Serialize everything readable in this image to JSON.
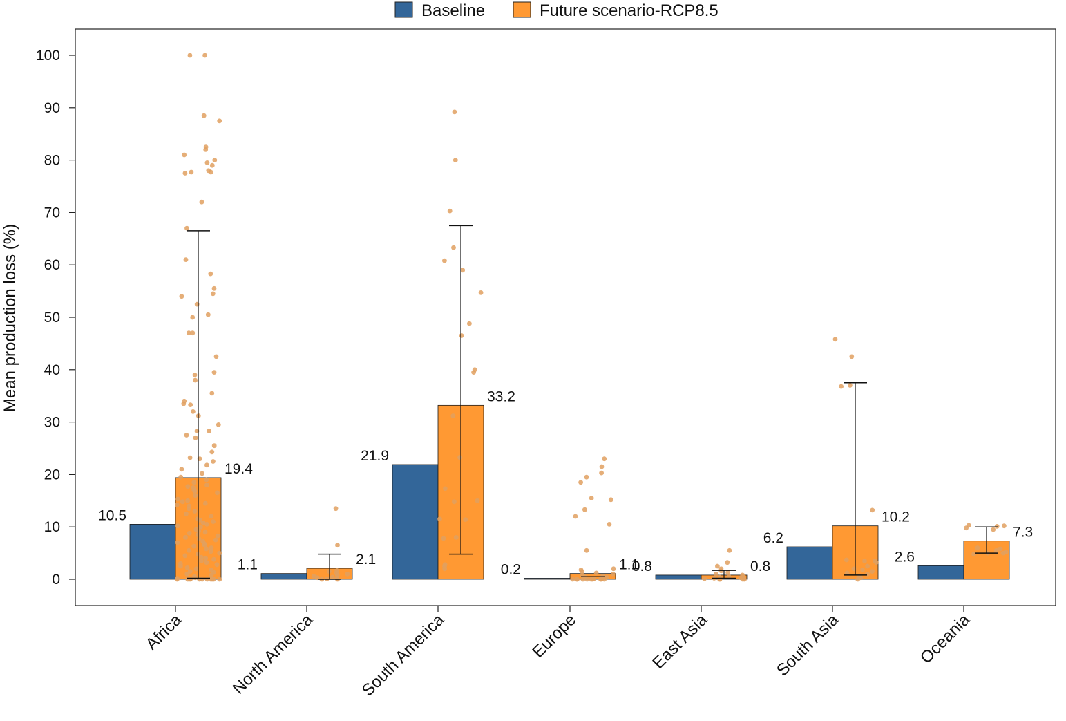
{
  "chart_data": {
    "type": "bar",
    "title": "",
    "xlabel": "",
    "ylabel": "Mean production loss (%)",
    "ylim": [
      -5,
      105
    ],
    "yticks": [
      0,
      10,
      20,
      30,
      40,
      50,
      60,
      70,
      80,
      90,
      100
    ],
    "grid": false,
    "legend_position": "top-center",
    "categories": [
      "Africa",
      "North America",
      "South America",
      "Europe",
      "East Asia",
      "South Asia",
      "Oceania"
    ],
    "series": [
      {
        "name": "Baseline",
        "color": "#336699",
        "values": [
          10.5,
          1.1,
          21.9,
          0.2,
          0.8,
          6.2,
          2.6
        ],
        "labels": [
          "10.5",
          "1.1",
          "21.9",
          "0.2",
          "0.8",
          "6.2",
          "2.6"
        ]
      },
      {
        "name": "Future scenario-RCP8.5",
        "color": "#FF9933",
        "values": [
          19.4,
          2.1,
          33.2,
          1.1,
          0.8,
          10.2,
          7.3
        ],
        "labels": [
          "19.4",
          "2.1",
          "33.2",
          "1.1",
          "0.8",
          "10.2",
          "7.3"
        ],
        "error_bars": [
          [
            0.2,
            66.5
          ],
          [
            0,
            4.8
          ],
          [
            4.8,
            67.5
          ],
          [
            0.5,
            0.5
          ],
          [
            0.2,
            1.7
          ],
          [
            0.8,
            37.5
          ],
          [
            5.0,
            10.0
          ]
        ],
        "points": [
          [
            100,
            100,
            88.5,
            87.5,
            82.5,
            82,
            81,
            80,
            79.5,
            79,
            78,
            77.7,
            77.7,
            77.5,
            72,
            67,
            61,
            58.3,
            55.5,
            54.5,
            54,
            52.5,
            50.5,
            50,
            47,
            47,
            42.5,
            39.5,
            39,
            38,
            35.5,
            34,
            33.5,
            33.3,
            32,
            31.2,
            29.5,
            28.3,
            28.3,
            27.5,
            27,
            25.5,
            24.3,
            23.2,
            23,
            22.5,
            21.8,
            21,
            20.2,
            19.5,
            19,
            18.5,
            18,
            17.7,
            17.5,
            17,
            16.8,
            16.5,
            16,
            15.3,
            15,
            14.8,
            14.5,
            14.2,
            14,
            13.5,
            13,
            12.5,
            12,
            11.5,
            11.3,
            11,
            10.8,
            10.5,
            10.2,
            10,
            9.5,
            9.2,
            9,
            8.8,
            8.5,
            8.3,
            8,
            7.7,
            7.5,
            7.2,
            7,
            6.8,
            6.5,
            6.3,
            6,
            5.8,
            5.5,
            5.3,
            5,
            4.8,
            4.5,
            4.2,
            4,
            3.8,
            3.5,
            3.2,
            3,
            2.8,
            2.5,
            2.2,
            2,
            1.8,
            1.5,
            1.3,
            1,
            0.8,
            0.5,
            0.3,
            0.2,
            0.1,
            0,
            0,
            0,
            0,
            0,
            0,
            0,
            0,
            0,
            0
          ],
          [
            13.5,
            6.5,
            1.7,
            1.5,
            1.2,
            1,
            0.8,
            0.6,
            0.4,
            0.3,
            0.2,
            0.1,
            0,
            0
          ],
          [
            89.2,
            80,
            70.3,
            63.3,
            60.8,
            59,
            54.7,
            48.8,
            46.5,
            40,
            39.5,
            31.2,
            23.3,
            23.2,
            17.3,
            15,
            14.8,
            11.5,
            11.4,
            8,
            7.8,
            2.8,
            2.5,
            2
          ],
          [
            23,
            21.5,
            20.3,
            19.5,
            18.5,
            15.5,
            15.2,
            13.3,
            12,
            10.5,
            5.5,
            2,
            1.8,
            1.5,
            1.2,
            1,
            0.8,
            0.6,
            0.5,
            0.4,
            0.3,
            0.2,
            0.2,
            0.1,
            0.1,
            0,
            0,
            0,
            0,
            0,
            0,
            0,
            0,
            0,
            0
          ],
          [
            5.5,
            3.2,
            2.5,
            2,
            1.6,
            1.3,
            1,
            0.8,
            0.6,
            0.5,
            0.4,
            0.3,
            0.2,
            0.1,
            0,
            0,
            0,
            0
          ],
          [
            45.8,
            42.5,
            37,
            36.8,
            13.2,
            3.7,
            3.5,
            3.5,
            3.2,
            2.5,
            2,
            1.8,
            1.5,
            1.2,
            1,
            0.5,
            0.3,
            0
          ],
          [
            10.3,
            10.2,
            10.1,
            9.8,
            9.5,
            6,
            5.8,
            5.5,
            5.2,
            5,
            5,
            4.8
          ]
        ]
      }
    ]
  }
}
